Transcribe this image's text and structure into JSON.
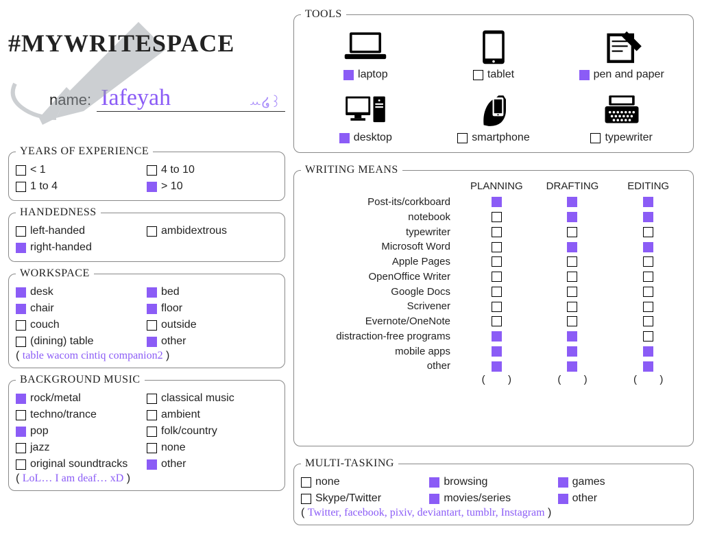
{
  "colors": {
    "accent": "#8b5cf6",
    "ink": "#222222",
    "border": "#888888",
    "bg": "#ffffff"
  },
  "header": {
    "hashtag": "#MYWRITESPACE",
    "name_label": "name:",
    "name_value": "Iafeyah"
  },
  "years": {
    "legend": "YEARS OF EXPERIENCE",
    "options": [
      {
        "label": "< 1",
        "checked": false
      },
      {
        "label": "1 to 4",
        "checked": false
      },
      {
        "label": "4 to 10",
        "checked": false
      },
      {
        "label": "> 10",
        "checked": true
      }
    ]
  },
  "handedness": {
    "legend": "HANDEDNESS",
    "options": [
      {
        "label": "left-handed",
        "checked": false
      },
      {
        "label": "right-handed",
        "checked": true
      },
      {
        "label": "ambidextrous",
        "checked": false
      }
    ]
  },
  "workspace": {
    "legend": "WORKSPACE",
    "options": [
      {
        "label": "desk",
        "checked": true
      },
      {
        "label": "chair",
        "checked": true
      },
      {
        "label": "couch",
        "checked": false
      },
      {
        "label": "(dining) table",
        "checked": false
      },
      {
        "label": "bed",
        "checked": true
      },
      {
        "label": "floor",
        "checked": true
      },
      {
        "label": "outside",
        "checked": false
      },
      {
        "label": "other",
        "checked": true
      }
    ],
    "other_text": "table wacom cintiq companion2"
  },
  "music": {
    "legend": "BACKGROUND MUSIC",
    "options": [
      {
        "label": "rock/metal",
        "checked": true
      },
      {
        "label": "techno/trance",
        "checked": false
      },
      {
        "label": "pop",
        "checked": true
      },
      {
        "label": "jazz",
        "checked": false
      },
      {
        "label": "original soundtracks",
        "checked": false
      },
      {
        "label": "classical music",
        "checked": false
      },
      {
        "label": "ambient",
        "checked": false
      },
      {
        "label": "folk/country",
        "checked": false
      },
      {
        "label": "none",
        "checked": false
      },
      {
        "label": "other",
        "checked": true
      }
    ],
    "other_text": "LoL… I am deaf… xD"
  },
  "tools": {
    "legend": "TOOLS",
    "items": [
      {
        "key": "laptop",
        "label": "laptop",
        "checked": true
      },
      {
        "key": "tablet",
        "label": "tablet",
        "checked": false
      },
      {
        "key": "penpaper",
        "label": "pen and paper",
        "checked": true
      },
      {
        "key": "desktop",
        "label": "desktop",
        "checked": true
      },
      {
        "key": "smartphone",
        "label": "smartphone",
        "checked": false
      },
      {
        "key": "typewriter",
        "label": "typewriter",
        "checked": false
      }
    ]
  },
  "writing_means": {
    "legend": "WRITING MEANS",
    "columns": [
      "PLANNING",
      "DRAFTING",
      "EDITING"
    ],
    "rows": [
      {
        "label": "Post-its/corkboard",
        "cells": [
          true,
          true,
          true
        ]
      },
      {
        "label": "notebook",
        "cells": [
          false,
          true,
          true
        ]
      },
      {
        "label": "typewriter",
        "cells": [
          false,
          false,
          false
        ]
      },
      {
        "label": "Microsoft Word",
        "cells": [
          false,
          true,
          true
        ]
      },
      {
        "label": "Apple Pages",
        "cells": [
          false,
          false,
          false
        ]
      },
      {
        "label": "OpenOffice Writer",
        "cells": [
          false,
          false,
          false
        ]
      },
      {
        "label": "Google Docs",
        "cells": [
          false,
          false,
          false
        ]
      },
      {
        "label": "Scrivener",
        "cells": [
          false,
          false,
          false
        ]
      },
      {
        "label": "Evernote/OneNote",
        "cells": [
          false,
          false,
          false
        ]
      },
      {
        "label": "distraction-free programs",
        "cells": [
          true,
          true,
          false
        ]
      },
      {
        "label": "mobile apps",
        "cells": [
          true,
          true,
          true
        ]
      },
      {
        "label": "other",
        "cells": [
          true,
          true,
          true
        ]
      }
    ]
  },
  "multitasking": {
    "legend": "MULTI-TASKING",
    "options": [
      {
        "label": "none",
        "checked": false
      },
      {
        "label": "Skype/Twitter",
        "checked": false
      },
      {
        "label": "browsing",
        "checked": true
      },
      {
        "label": "movies/series",
        "checked": true
      },
      {
        "label": "games",
        "checked": true
      },
      {
        "label": "other",
        "checked": true
      }
    ],
    "other_text": "Twitter, facebook, pixiv, deviantart, tumblr, Instagram"
  }
}
